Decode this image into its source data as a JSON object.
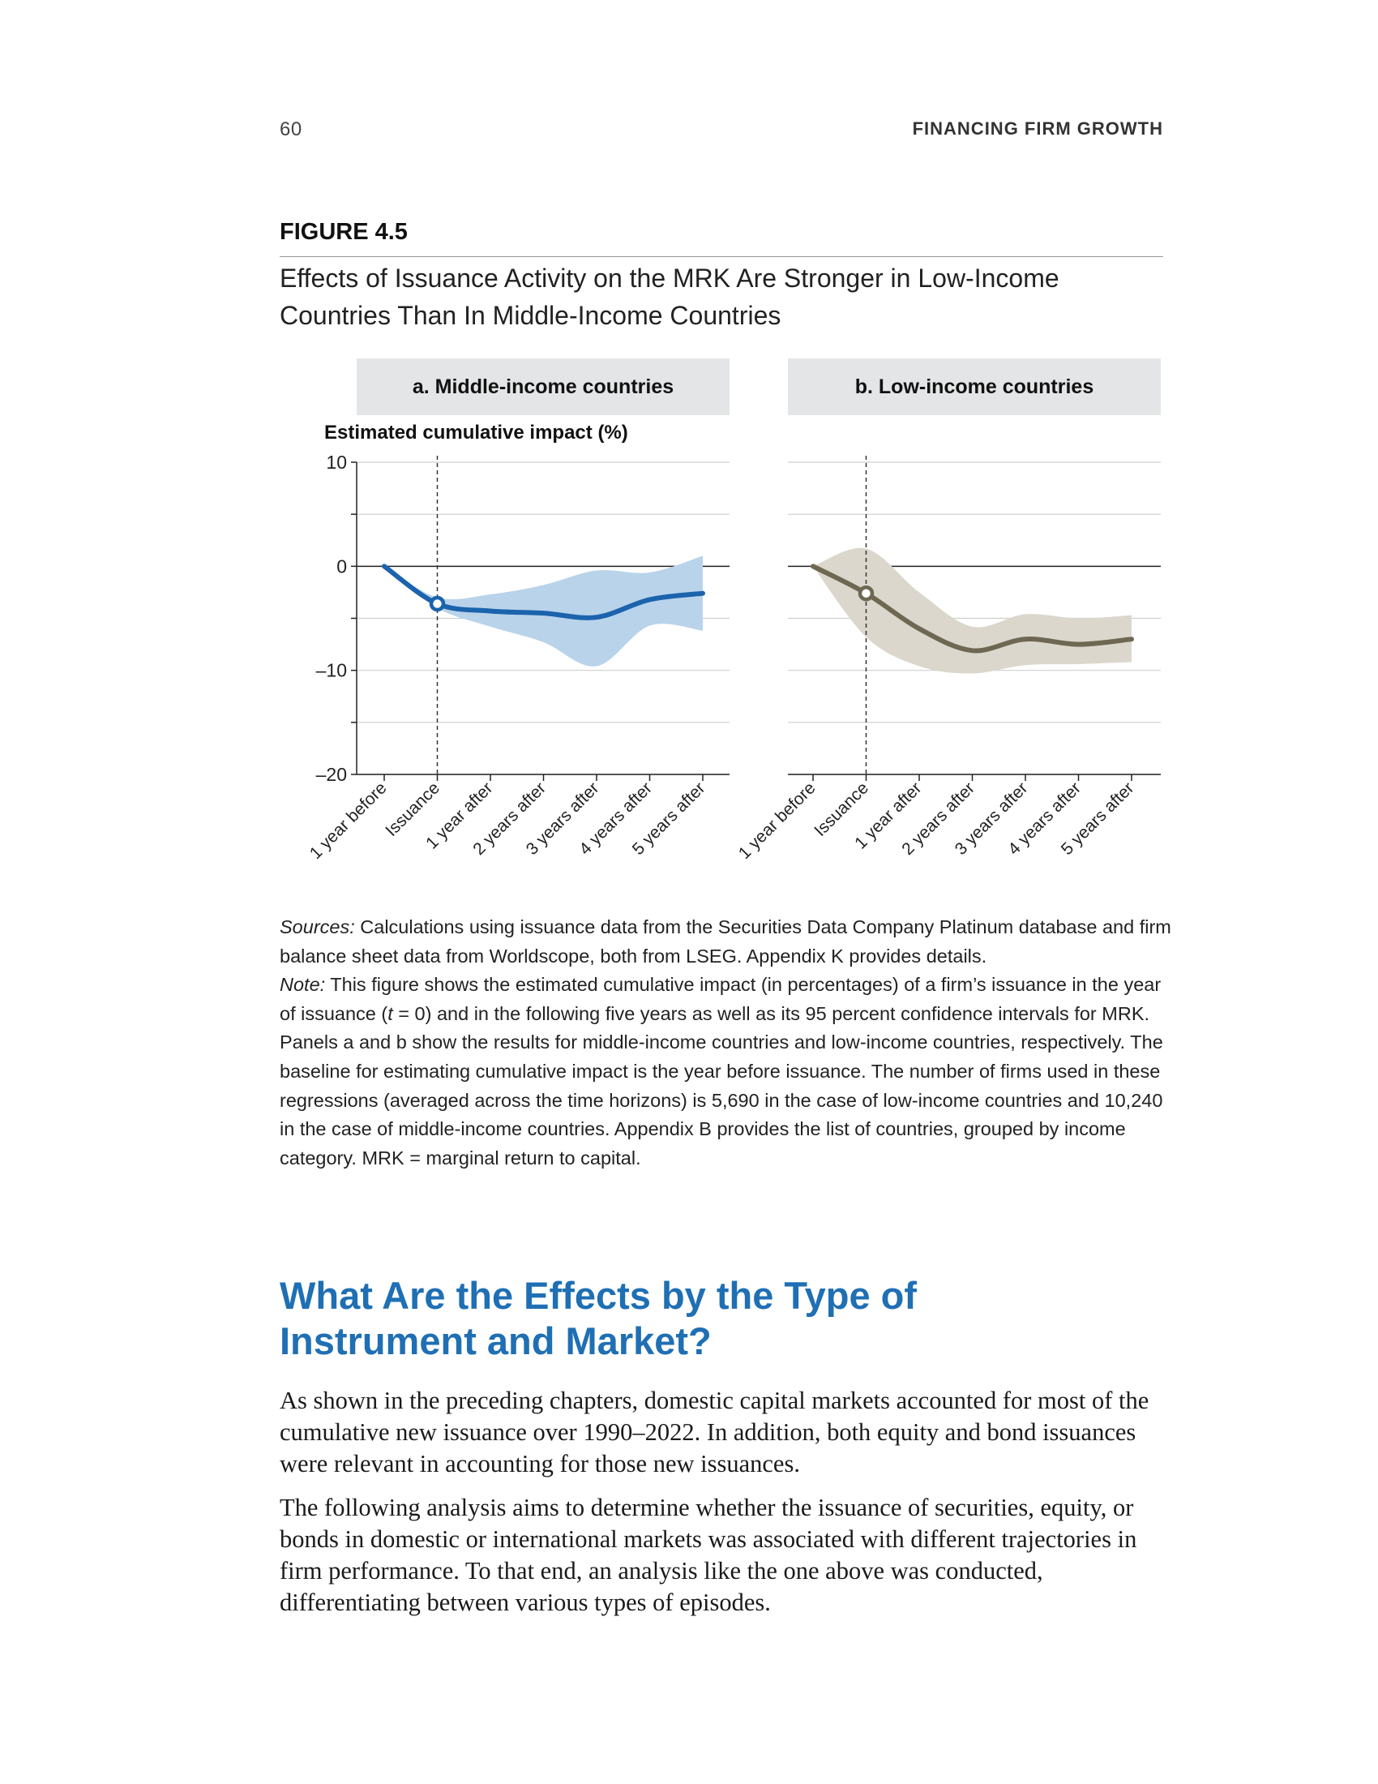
{
  "header": {
    "page_number": "60",
    "running_head": "FINANCING FIRM GROWTH"
  },
  "figure": {
    "label": "FIGURE 4.5",
    "title": "Effects of Issuance Activity on the MRK Are Stronger in Low-Income Countries Than In Middle-Income Countries",
    "y_axis_label": "Estimated cumulative impact (%)"
  },
  "colors": {
    "heading_blue": "#1f6fb4",
    "middle_line": "#1b63ad",
    "middle_band": "#b9d3ea",
    "low_line": "#6e6752",
    "low_band": "#dcd7cd",
    "panel_header_bg": "#e4e5e7"
  },
  "chart_data": [
    {
      "type": "line",
      "title": "a. Middle-income countries",
      "ylabel": "Estimated cumulative impact (%)",
      "categories": [
        "1 year before",
        "Issuance",
        "1 year after",
        "2 years after",
        "3 years after",
        "4 years after",
        "5 years after"
      ],
      "ylim": [
        -20,
        10
      ],
      "yticks": [
        10,
        0,
        -10,
        -20
      ],
      "grid": true,
      "reference_line_x": "Issuance",
      "series": [
        {
          "values": [
            0,
            -3.6,
            -4.3,
            -4.5,
            -4.9,
            -3.2,
            -2.6
          ]
        }
      ],
      "ci_lower": [
        0,
        -4.0,
        -5.8,
        -7.3,
        -9.6,
        -5.7,
        -6.2
      ],
      "ci_upper": [
        0,
        -3.0,
        -2.7,
        -1.8,
        -0.4,
        -0.6,
        1.0
      ]
    },
    {
      "type": "line",
      "title": "b. Low-income countries",
      "categories": [
        "1 year before",
        "Issuance",
        "1 year after",
        "2 years after",
        "3 years after",
        "4 years after",
        "5 years after"
      ],
      "ylim": [
        -20,
        10
      ],
      "grid": true,
      "reference_line_x": "Issuance",
      "series": [
        {
          "values": [
            0,
            -2.6,
            -6.0,
            -8.1,
            -7.0,
            -7.5,
            -7.0
          ]
        }
      ],
      "ci_lower": [
        0,
        -6.8,
        -9.6,
        -10.3,
        -9.5,
        -9.4,
        -9.2
      ],
      "ci_upper": [
        0,
        1.7,
        -2.5,
        -5.8,
        -4.6,
        -5.0,
        -4.7
      ]
    }
  ],
  "notes": {
    "sources_label": "Sources:",
    "sources_text": " Calculations using issuance data from the Securities Data Company Platinum database and firm balance sheet data from Worldscope, both from LSEG. Appendix K provides details.",
    "note_label": "Note:",
    "note_text_1": " This figure shows the estimated cumulative impact (in percentages) of a firm’s issuance in the year of issuance (",
    "note_t": "t",
    "note_text_2": " = 0) and in the following five years as well as its 95 percent confidence intervals for MRK. Panels a and b show the results for middle-income countries and low-income countries, respectively. The baseline for estimating cumulative impact is the year before issuance. The number of firms used in these regressions (averaged across the time horizons) is 5,690 in the case of low-income countries and 10,240 in the case of middle-income countries. Appendix B provides the list of countries, grouped by income category. MRK = marginal return to capital."
  },
  "section": {
    "heading": "What Are the Effects by the Type of Instrument and Market?",
    "paragraphs": [
      "As shown in the preceding chapters, domestic capital markets accounted for most of the cumulative new issuance over 1990–2022. In addition, both equity and bond issuances were relevant in accounting for those new issuances.",
      "The following analysis aims to determine whether the issuance of securities, equity, or bonds in domestic or international markets was associated with different trajectories in firm performance. To that end, an analysis like the one above was conducted, differentiating between various types of episodes."
    ]
  }
}
